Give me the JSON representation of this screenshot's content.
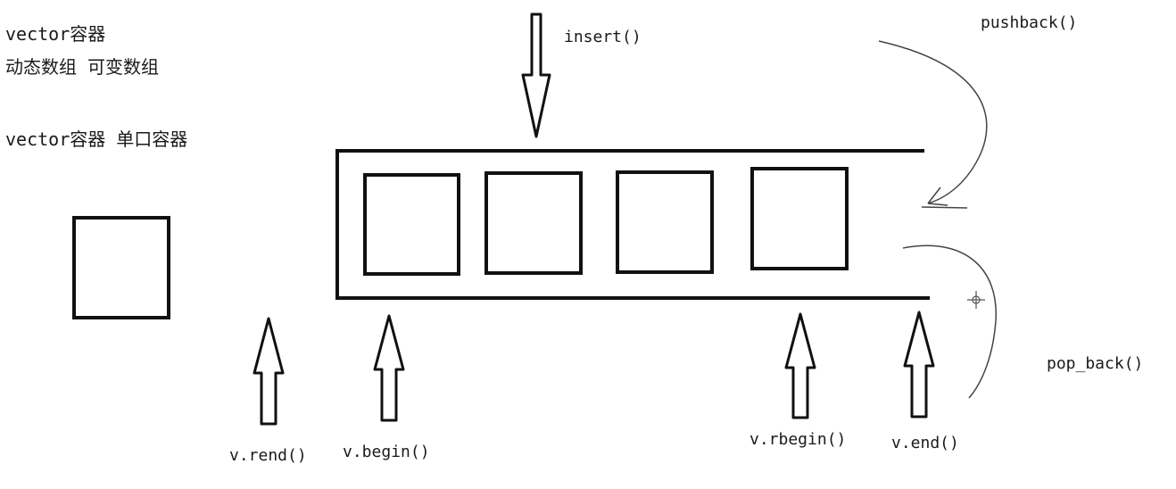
{
  "notes": {
    "line1": "vector容器",
    "line2": "动态数组 可变数组",
    "line3": "vector容器 单口容器"
  },
  "labels": {
    "insert": "insert()",
    "pushback": "pushback()",
    "pop_back": "pop_back()",
    "rend": "v.rend()",
    "begin": "v.begin()",
    "rbegin": "v.rbegin()",
    "end": "v.end()"
  },
  "colors": {
    "ink": "#111111",
    "curve": "#444444"
  }
}
